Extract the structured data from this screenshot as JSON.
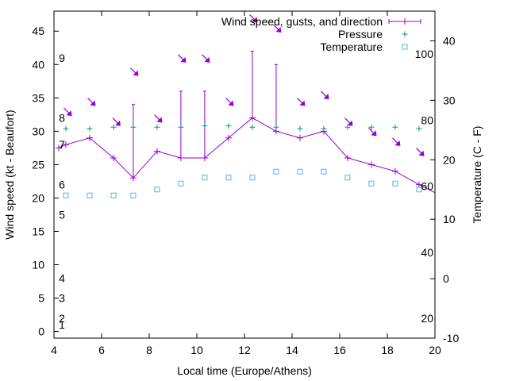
{
  "chart_data": {
    "type": "line",
    "xlabel": "Local time (Europe/Athens)",
    "ylabel_left": "Wind speed (kt - Beaufort)",
    "ylabel_right": "Temperature (C - F)",
    "xlim": [
      4,
      20
    ],
    "ylim_left": [
      -1,
      48
    ],
    "ylim_right": [
      -10,
      45
    ],
    "x_ticks": [
      4,
      6,
      8,
      10,
      12,
      14,
      16,
      18,
      20
    ],
    "y_left_ticks": [
      0,
      5,
      10,
      15,
      20,
      25,
      30,
      35,
      40,
      45
    ],
    "y_right_ticks": [
      -10,
      0,
      10,
      20,
      30,
      40
    ],
    "grid": false,
    "legend_position": "top-right",
    "legend": {
      "wind": "Wind speed, gusts, and direction",
      "pressure": "Pressure",
      "temperature": "Temperature"
    },
    "beaufort_labels": [
      {
        "value": 1,
        "label": "1"
      },
      {
        "value": 2,
        "label": "2"
      },
      {
        "value": 5,
        "label": "3"
      },
      {
        "value": 8,
        "label": "4"
      },
      {
        "value": 17.5,
        "label": "5"
      },
      {
        "value": 22,
        "label": "6"
      },
      {
        "value": 28,
        "label": "7"
      },
      {
        "value": 32,
        "label": "8"
      },
      {
        "value": 41,
        "label": "9"
      }
    ],
    "fahrenheit_labels": [
      {
        "value": 20,
        "label": "20"
      },
      {
        "value": 40,
        "label": "40"
      },
      {
        "value": 60,
        "label": "60"
      },
      {
        "value": 80,
        "label": "80"
      },
      {
        "value": 100,
        "label": "100"
      }
    ],
    "wind": {
      "x": [
        4.2,
        4.5,
        5.5,
        6.5,
        7.33,
        8.33,
        9.33,
        10.33,
        11.33,
        12.33,
        13.33,
        14.33,
        15.33,
        16.33,
        17.33,
        18.33,
        19.33,
        20
      ],
      "speed": [
        27.5,
        28,
        29,
        26,
        23,
        27,
        26,
        26,
        29,
        32,
        30,
        29,
        30,
        26,
        25,
        24,
        22,
        20.8
      ],
      "gust": [
        null,
        null,
        null,
        null,
        34,
        null,
        36,
        36,
        null,
        42,
        40,
        null,
        null,
        null,
        null,
        null,
        null,
        null
      ]
    },
    "direction_arrows": [
      {
        "x": 4.55,
        "y": 33
      },
      {
        "x": 5.55,
        "y": 34.5
      },
      {
        "x": 6.6,
        "y": 31.5
      },
      {
        "x": 7.35,
        "y": 39
      },
      {
        "x": 8.35,
        "y": 32
      },
      {
        "x": 9.35,
        "y": 41
      },
      {
        "x": 10.35,
        "y": 41
      },
      {
        "x": 11.35,
        "y": 34.5
      },
      {
        "x": 12.35,
        "y": 47
      },
      {
        "x": 13.35,
        "y": 45.5
      },
      {
        "x": 14.35,
        "y": 34.5
      },
      {
        "x": 15.35,
        "y": 35.5
      },
      {
        "x": 16.35,
        "y": 31.5
      },
      {
        "x": 17.35,
        "y": 30
      },
      {
        "x": 18.35,
        "y": 28.5
      },
      {
        "x": 19.35,
        "y": 27
      }
    ],
    "pressure": {
      "x": [
        4.5,
        5.5,
        6.5,
        7.33,
        8.33,
        9.33,
        10.33,
        11.33,
        12.33,
        13.33,
        14.33,
        15.33,
        16.33,
        17.33,
        18.33,
        19.33
      ],
      "y": [
        30.4,
        30.4,
        30.6,
        30.6,
        30.6,
        30.6,
        30.8,
        30.8,
        30.6,
        30.6,
        30.4,
        30.4,
        30.6,
        30.6,
        30.6,
        30.4
      ]
    },
    "temperature": {
      "x": [
        4.5,
        5.5,
        6.5,
        7.33,
        8.33,
        9.33,
        10.33,
        11.33,
        12.33,
        13.33,
        14.33,
        15.33,
        16.33,
        17.33,
        18.33,
        19.33
      ],
      "celsius": [
        14,
        14,
        14,
        14,
        15,
        16,
        17,
        17,
        17,
        18,
        18,
        18,
        17,
        16,
        16,
        15
      ]
    },
    "colors": {
      "wind": "#9400d3",
      "pressure": "#009e73",
      "temperature": "#56b4e9",
      "axes": "#000000"
    }
  }
}
